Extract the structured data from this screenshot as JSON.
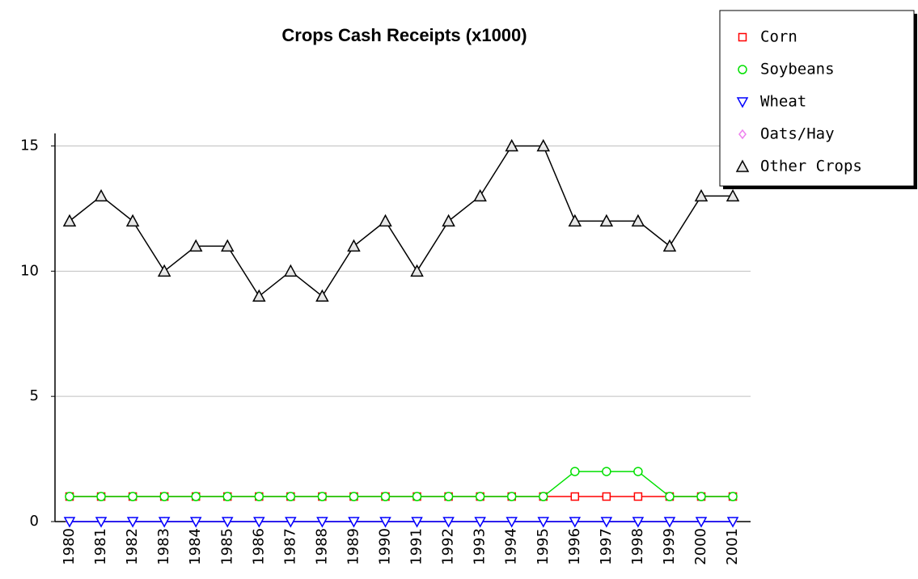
{
  "chart_data": {
    "type": "line",
    "title": "Crops Cash Receipts (x1000)",
    "categories": [
      "1980",
      "1981",
      "1982",
      "1983",
      "1984",
      "1985",
      "1986",
      "1987",
      "1988",
      "1989",
      "1990",
      "1991",
      "1992",
      "1993",
      "1994",
      "1995",
      "1996",
      "1997",
      "1998",
      "1999",
      "2000",
      "2001"
    ],
    "series": [
      {
        "name": "Corn",
        "color": "#ff0000",
        "marker": "square",
        "values": [
          1,
          1,
          1,
          1,
          1,
          1,
          1,
          1,
          1,
          1,
          1,
          1,
          1,
          1,
          1,
          1,
          1,
          1,
          1,
          1,
          1,
          1
        ]
      },
      {
        "name": "Soybeans",
        "color": "#00e000",
        "marker": "circle",
        "values": [
          1,
          1,
          1,
          1,
          1,
          1,
          1,
          1,
          1,
          1,
          1,
          1,
          1,
          1,
          1,
          1,
          2,
          2,
          2,
          1,
          1,
          1
        ]
      },
      {
        "name": "Wheat",
        "color": "#0000ff",
        "marker": "triangle-down",
        "values": [
          0,
          0,
          0,
          0,
          0,
          0,
          0,
          0,
          0,
          0,
          0,
          0,
          0,
          0,
          0,
          0,
          0,
          0,
          0,
          0,
          0,
          0
        ]
      },
      {
        "name": "Oats/Hay",
        "color": "#ee82ee",
        "marker": "diamond",
        "values": [
          0,
          0,
          0,
          0,
          0,
          0,
          0,
          0,
          0,
          0,
          0,
          0,
          0,
          0,
          0,
          0,
          0,
          0,
          0,
          0,
          0,
          0
        ]
      },
      {
        "name": "Other Crops",
        "color": "#000000",
        "marker": "triangle-up",
        "values": [
          12,
          13,
          12,
          10,
          11,
          11,
          9,
          10,
          9,
          11,
          12,
          10,
          12,
          13,
          15,
          15,
          12,
          12,
          12,
          11,
          13,
          13
        ]
      }
    ],
    "ylim": [
      0,
      15.5
    ],
    "yticks": [
      0,
      5,
      10,
      15
    ],
    "grid": true,
    "legend": "top-right"
  }
}
